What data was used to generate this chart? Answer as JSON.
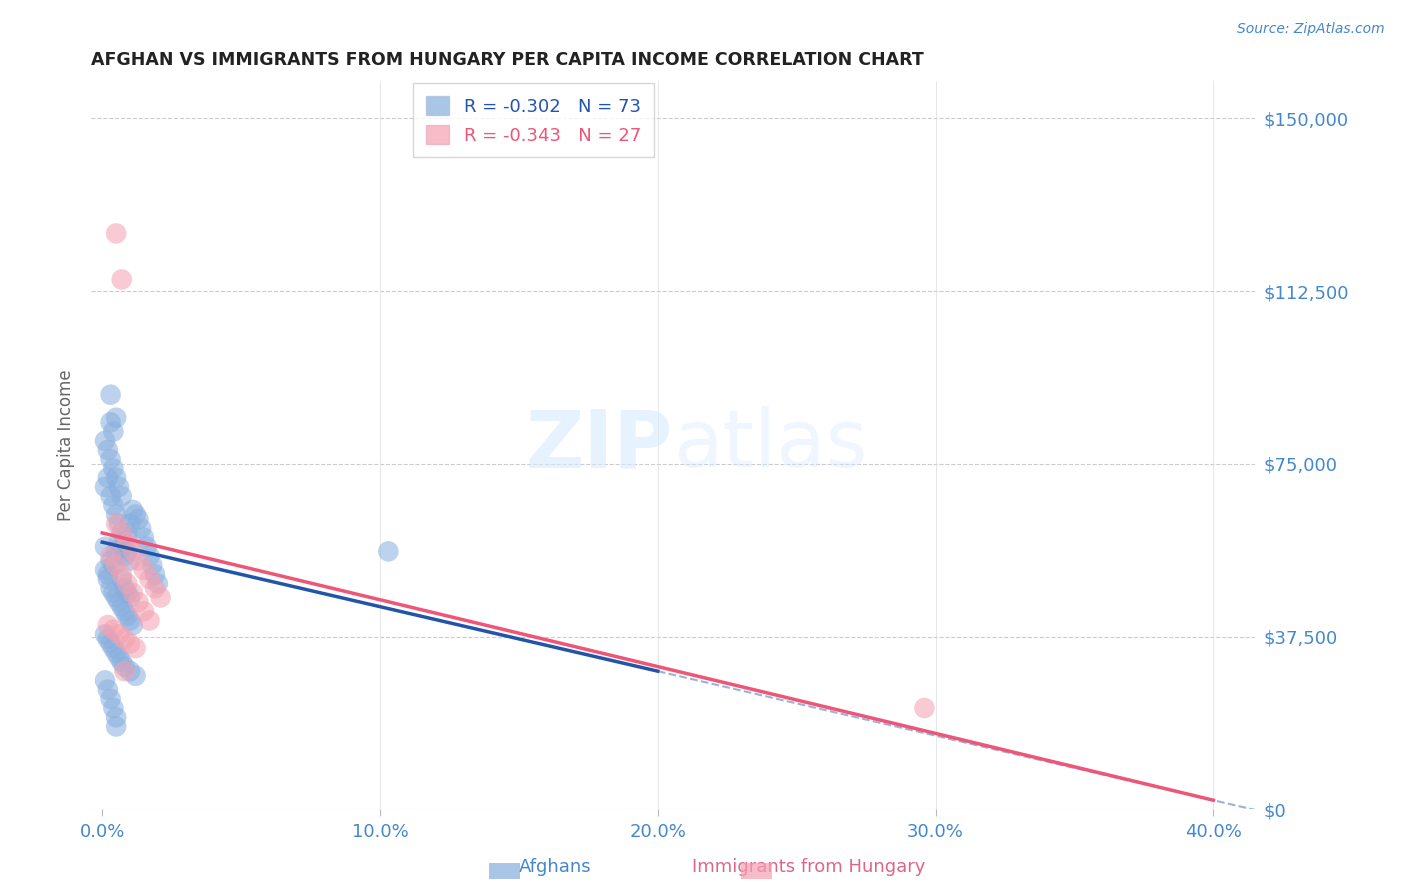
{
  "title": "AFGHAN VS IMMIGRANTS FROM HUNGARY PER CAPITA INCOME CORRELATION CHART",
  "source": "Source: ZipAtlas.com",
  "xlabel_ticks": [
    "0.0%",
    "10.0%",
    "20.0%",
    "30.0%",
    "40.0%"
  ],
  "xlabel_tick_vals": [
    0.0,
    0.1,
    0.2,
    0.3,
    0.4
  ],
  "ylabel_ticks": [
    0,
    37500,
    75000,
    112500,
    150000
  ],
  "ylabel_labels": [
    "$0",
    "$37,500",
    "$75,000",
    "$112,500",
    "$150,000"
  ],
  "xlim": [
    -0.004,
    0.415
  ],
  "ylim": [
    0,
    158000
  ],
  "legend_r_blue": "-0.302",
  "legend_n_blue": "73",
  "legend_r_pink": "-0.343",
  "legend_n_pink": "27",
  "legend_label_blue": "Afghans",
  "legend_label_pink": "Immigrants from Hungary",
  "blue_color": "#87AEDE",
  "pink_color": "#F4A0B0",
  "line_blue": "#2255AA",
  "line_pink": "#EE5577",
  "blue_scatter_x": [
    0.001,
    0.002,
    0.003,
    0.004,
    0.005,
    0.006,
    0.007,
    0.008,
    0.009,
    0.01,
    0.011,
    0.012,
    0.013,
    0.014,
    0.015,
    0.016,
    0.017,
    0.018,
    0.019,
    0.02,
    0.001,
    0.002,
    0.003,
    0.004,
    0.005,
    0.006,
    0.007,
    0.008,
    0.009,
    0.01,
    0.002,
    0.003,
    0.004,
    0.005,
    0.006,
    0.007,
    0.008,
    0.009,
    0.01,
    0.011,
    0.001,
    0.002,
    0.003,
    0.004,
    0.005,
    0.006,
    0.007,
    0.008,
    0.01,
    0.012,
    0.001,
    0.002,
    0.003,
    0.004,
    0.005,
    0.006,
    0.007,
    0.003,
    0.004,
    0.005,
    0.001,
    0.002,
    0.003,
    0.004,
    0.005,
    0.008,
    0.009,
    0.01,
    0.007,
    0.003,
    0.001,
    0.103,
    0.005
  ],
  "blue_scatter_y": [
    52000,
    51000,
    54000,
    53000,
    56000,
    58000,
    57000,
    55000,
    60000,
    62000,
    65000,
    64000,
    63000,
    61000,
    59000,
    57000,
    55000,
    53000,
    51000,
    49000,
    70000,
    72000,
    68000,
    66000,
    64000,
    62000,
    60000,
    58000,
    56000,
    54000,
    50000,
    48000,
    47000,
    46000,
    45000,
    44000,
    43000,
    42000,
    41000,
    40000,
    38000,
    37000,
    36000,
    35000,
    34000,
    33000,
    32000,
    31000,
    30000,
    29000,
    80000,
    78000,
    76000,
    74000,
    72000,
    70000,
    68000,
    84000,
    82000,
    85000,
    28000,
    26000,
    24000,
    22000,
    20000,
    48000,
    47000,
    46000,
    50000,
    90000,
    57000,
    56000,
    18000
  ],
  "pink_scatter_x": [
    0.005,
    0.007,
    0.009,
    0.011,
    0.013,
    0.015,
    0.017,
    0.019,
    0.021,
    0.003,
    0.005,
    0.007,
    0.009,
    0.011,
    0.013,
    0.015,
    0.017,
    0.002,
    0.004,
    0.006,
    0.008,
    0.01,
    0.012,
    0.005,
    0.007,
    0.296,
    0.008
  ],
  "pink_scatter_y": [
    62000,
    60000,
    58000,
    56000,
    54000,
    52000,
    50000,
    48000,
    46000,
    55000,
    53000,
    51000,
    49000,
    47000,
    45000,
    43000,
    41000,
    40000,
    39000,
    38000,
    37000,
    36000,
    35000,
    125000,
    115000,
    22000,
    30000
  ],
  "blue_line_x0": 0.0,
  "blue_line_x1": 0.2,
  "blue_line_y0": 58000,
  "blue_line_y1": 30000,
  "pink_line_x0": 0.0,
  "pink_line_x1": 0.4,
  "pink_line_y0": 60000,
  "pink_line_y1": 2000
}
